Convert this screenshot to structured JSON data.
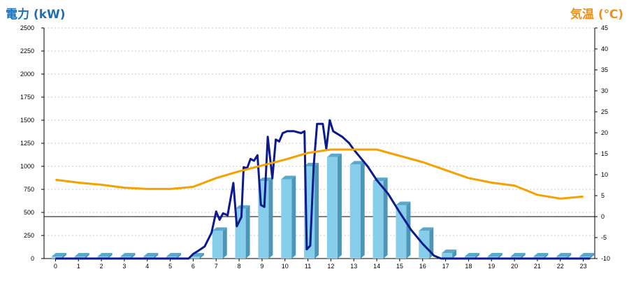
{
  "chart_data": {
    "type": "bar",
    "categories": [
      "0",
      "1",
      "2",
      "3",
      "4",
      "5",
      "6",
      "7",
      "8",
      "9",
      "10",
      "11",
      "12",
      "13",
      "14",
      "15",
      "16",
      "17",
      "18",
      "19",
      "20",
      "21",
      "22",
      "23"
    ],
    "y_left": {
      "title": "電力 (kW)",
      "range": [
        0,
        2500
      ],
      "ticks": [
        "0",
        "250",
        "500",
        "750",
        "1000",
        "1250",
        "1500",
        "1750",
        "2000",
        "2250",
        "2500"
      ],
      "color": "#1f6fb2"
    },
    "y_right": {
      "title": "気温 (℃)",
      "range": [
        -10,
        45
      ],
      "ticks": [
        "-10",
        "-5",
        "0",
        "5",
        "10",
        "15",
        "20",
        "25",
        "30",
        "35",
        "40",
        "45"
      ],
      "color": "#f0901a"
    },
    "grid": "horizontal dashed",
    "reference_line": {
      "axis": "right",
      "value": 0
    },
    "series": [
      {
        "kind": "bar3d",
        "axis": "left",
        "color": "#87ceeb",
        "values": [
          0,
          0,
          0,
          0,
          0,
          0,
          20,
          300,
          540,
          840,
          860,
          1000,
          1100,
          1020,
          840,
          580,
          300,
          60,
          0,
          0,
          0,
          0,
          0,
          0
        ]
      },
      {
        "kind": "line",
        "axis": "left",
        "color": "#0b1a8c",
        "points": [
          [
            0,
            0
          ],
          [
            5.8,
            0
          ],
          [
            6.0,
            50
          ],
          [
            6.2,
            80
          ],
          [
            6.5,
            130
          ],
          [
            6.8,
            280
          ],
          [
            7.0,
            510
          ],
          [
            7.15,
            420
          ],
          [
            7.3,
            490
          ],
          [
            7.5,
            470
          ],
          [
            7.75,
            820
          ],
          [
            7.9,
            350
          ],
          [
            8.1,
            450
          ],
          [
            8.2,
            990
          ],
          [
            8.35,
            980
          ],
          [
            8.5,
            1080
          ],
          [
            8.65,
            1060
          ],
          [
            8.8,
            1120
          ],
          [
            8.95,
            580
          ],
          [
            9.1,
            560
          ],
          [
            9.25,
            1320
          ],
          [
            9.45,
            870
          ],
          [
            9.6,
            1290
          ],
          [
            9.75,
            1270
          ],
          [
            9.9,
            1360
          ],
          [
            10.1,
            1380
          ],
          [
            10.4,
            1380
          ],
          [
            10.7,
            1360
          ],
          [
            10.85,
            1380
          ],
          [
            10.95,
            100
          ],
          [
            11.1,
            140
          ],
          [
            11.25,
            1000
          ],
          [
            11.4,
            1460
          ],
          [
            11.65,
            1460
          ],
          [
            11.8,
            1190
          ],
          [
            11.95,
            1500
          ],
          [
            12.1,
            1380
          ],
          [
            12.5,
            1320
          ],
          [
            12.8,
            1250
          ],
          [
            13.0,
            1180
          ],
          [
            13.3,
            1090
          ],
          [
            13.6,
            1000
          ],
          [
            14.0,
            850
          ],
          [
            14.5,
            700
          ],
          [
            15.0,
            500
          ],
          [
            15.5,
            310
          ],
          [
            16.0,
            160
          ],
          [
            16.5,
            30
          ],
          [
            16.8,
            0
          ],
          [
            23.3,
            0
          ]
        ]
      },
      {
        "kind": "line",
        "axis": "right",
        "color": "#f5a100",
        "values": [
          8.8,
          8.1,
          7.6,
          6.9,
          6.6,
          6.6,
          7.1,
          9.2,
          10.8,
          12.2,
          13.6,
          15.2,
          16.0,
          16.0,
          16.0,
          14.5,
          13.0,
          11.1,
          9.2,
          8.1,
          7.4,
          5.2,
          4.3,
          4.8
        ]
      }
    ]
  }
}
